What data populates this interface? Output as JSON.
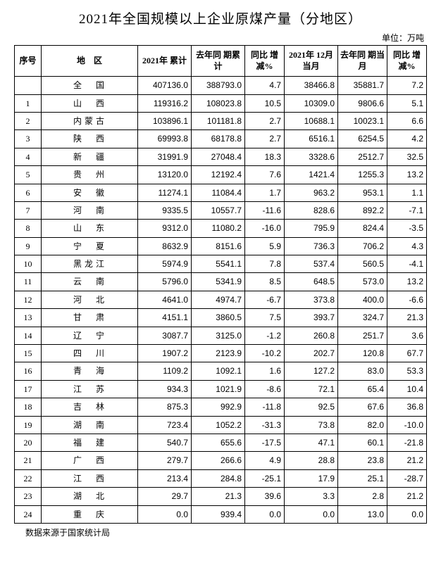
{
  "title": "2021年全国规模以上企业原煤产量（分地区）",
  "unit": "单位：万吨",
  "footnote": "数据来源于国家统计局",
  "headers": {
    "seq": "序号",
    "region": "地　区",
    "c1": "2021年\n累计",
    "c2": "去年同\n期累计",
    "c3": "同比\n增减%",
    "c4": "2021年\n12月当月",
    "c5": "去年同\n期当月",
    "c6": "同比\n增减%"
  },
  "totalRow": {
    "seq": "",
    "region": "全　国",
    "c1": "407136.0",
    "c2": "388793.0",
    "c3": "4.7",
    "c4": "38466.8",
    "c5": "35881.7",
    "c6": "7.2"
  },
  "rows": [
    {
      "seq": "1",
      "region": "山　西",
      "c1": "119316.2",
      "c2": "108023.8",
      "c3": "10.5",
      "c4": "10309.0",
      "c5": "9806.6",
      "c6": "5.1"
    },
    {
      "seq": "2",
      "region": "内蒙古",
      "c1": "103896.1",
      "c2": "101181.8",
      "c3": "2.7",
      "c4": "10688.1",
      "c5": "10023.1",
      "c6": "6.6"
    },
    {
      "seq": "3",
      "region": "陕　西",
      "c1": "69993.8",
      "c2": "68178.8",
      "c3": "2.7",
      "c4": "6516.1",
      "c5": "6254.5",
      "c6": "4.2"
    },
    {
      "seq": "4",
      "region": "新　疆",
      "c1": "31991.9",
      "c2": "27048.4",
      "c3": "18.3",
      "c4": "3328.6",
      "c5": "2512.7",
      "c6": "32.5"
    },
    {
      "seq": "5",
      "region": "贵　州",
      "c1": "13120.0",
      "c2": "12192.4",
      "c3": "7.6",
      "c4": "1421.4",
      "c5": "1255.3",
      "c6": "13.2"
    },
    {
      "seq": "6",
      "region": "安　徽",
      "c1": "11274.1",
      "c2": "11084.4",
      "c3": "1.7",
      "c4": "963.2",
      "c5": "953.1",
      "c6": "1.1"
    },
    {
      "seq": "7",
      "region": "河　南",
      "c1": "9335.5",
      "c2": "10557.7",
      "c3": "-11.6",
      "c4": "828.6",
      "c5": "892.2",
      "c6": "-7.1"
    },
    {
      "seq": "8",
      "region": "山　东",
      "c1": "9312.0",
      "c2": "11080.2",
      "c3": "-16.0",
      "c4": "795.9",
      "c5": "824.4",
      "c6": "-3.5"
    },
    {
      "seq": "9",
      "region": "宁　夏",
      "c1": "8632.9",
      "c2": "8151.6",
      "c3": "5.9",
      "c4": "736.3",
      "c5": "706.2",
      "c6": "4.3"
    },
    {
      "seq": "10",
      "region": "黑龙江",
      "c1": "5974.9",
      "c2": "5541.1",
      "c3": "7.8",
      "c4": "537.4",
      "c5": "560.5",
      "c6": "-4.1"
    },
    {
      "seq": "11",
      "region": "云　南",
      "c1": "5796.0",
      "c2": "5341.9",
      "c3": "8.5",
      "c4": "648.5",
      "c5": "573.0",
      "c6": "13.2"
    },
    {
      "seq": "12",
      "region": "河　北",
      "c1": "4641.0",
      "c2": "4974.7",
      "c3": "-6.7",
      "c4": "373.8",
      "c5": "400.0",
      "c6": "-6.6"
    },
    {
      "seq": "13",
      "region": "甘　肃",
      "c1": "4151.1",
      "c2": "3860.5",
      "c3": "7.5",
      "c4": "393.7",
      "c5": "324.7",
      "c6": "21.3"
    },
    {
      "seq": "14",
      "region": "辽　宁",
      "c1": "3087.7",
      "c2": "3125.0",
      "c3": "-1.2",
      "c4": "260.8",
      "c5": "251.7",
      "c6": "3.6"
    },
    {
      "seq": "15",
      "region": "四　川",
      "c1": "1907.2",
      "c2": "2123.9",
      "c3": "-10.2",
      "c4": "202.7",
      "c5": "120.8",
      "c6": "67.7"
    },
    {
      "seq": "16",
      "region": "青　海",
      "c1": "1109.2",
      "c2": "1092.1",
      "c3": "1.6",
      "c4": "127.2",
      "c5": "83.0",
      "c6": "53.3"
    },
    {
      "seq": "17",
      "region": "江　苏",
      "c1": "934.3",
      "c2": "1021.9",
      "c3": "-8.6",
      "c4": "72.1",
      "c5": "65.4",
      "c6": "10.4"
    },
    {
      "seq": "18",
      "region": "吉　林",
      "c1": "875.3",
      "c2": "992.9",
      "c3": "-11.8",
      "c4": "92.5",
      "c5": "67.6",
      "c6": "36.8"
    },
    {
      "seq": "19",
      "region": "湖　南",
      "c1": "723.4",
      "c2": "1052.2",
      "c3": "-31.3",
      "c4": "73.8",
      "c5": "82.0",
      "c6": "-10.0"
    },
    {
      "seq": "20",
      "region": "福　建",
      "c1": "540.7",
      "c2": "655.6",
      "c3": "-17.5",
      "c4": "47.1",
      "c5": "60.1",
      "c6": "-21.8"
    },
    {
      "seq": "21",
      "region": "广　西",
      "c1": "279.7",
      "c2": "266.6",
      "c3": "4.9",
      "c4": "28.8",
      "c5": "23.8",
      "c6": "21.2"
    },
    {
      "seq": "22",
      "region": "江　西",
      "c1": "213.4",
      "c2": "284.8",
      "c3": "-25.1",
      "c4": "17.9",
      "c5": "25.1",
      "c6": "-28.7"
    },
    {
      "seq": "23",
      "region": "湖　北",
      "c1": "29.7",
      "c2": "21.3",
      "c3": "39.6",
      "c4": "3.3",
      "c5": "2.8",
      "c6": "21.2"
    },
    {
      "seq": "24",
      "region": "重　庆",
      "c1": "0.0",
      "c2": "939.4",
      "c3": "0.0",
      "c4": "0.0",
      "c5": "13.0",
      "c6": "0.0"
    }
  ]
}
